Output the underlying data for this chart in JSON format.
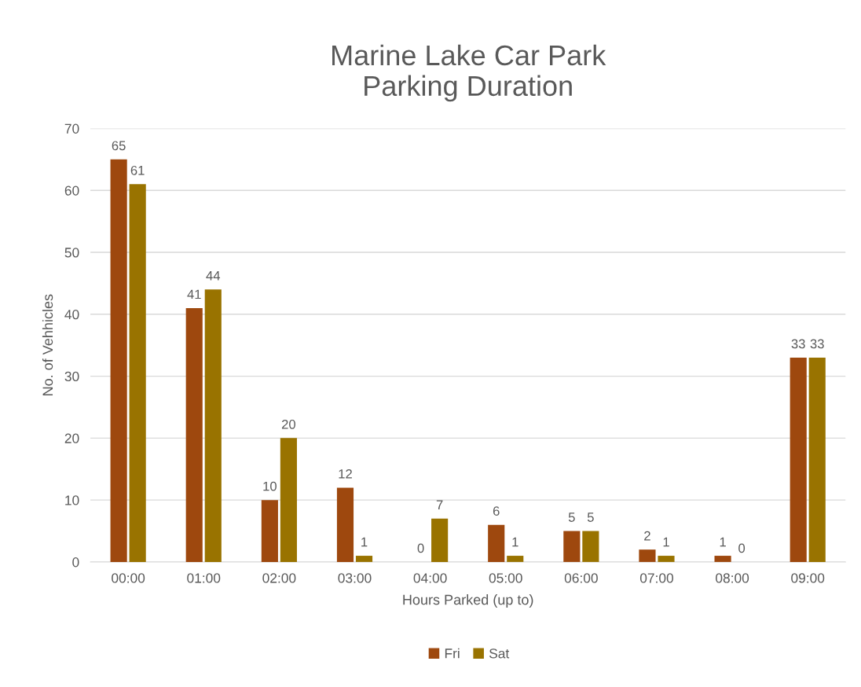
{
  "chart_data": {
    "type": "bar",
    "title": "Marine Lake Car Park\nParking Duration",
    "xlabel": "Hours Parked (up to)",
    "ylabel": "No. of Vehhicles",
    "categories": [
      "00:00",
      "01:00",
      "02:00",
      "03:00",
      "04:00",
      "05:00",
      "06:00",
      "07:00",
      "08:00",
      "09:00"
    ],
    "series": [
      {
        "name": "Fri",
        "color": "#9e480e",
        "values": [
          65,
          41,
          10,
          12,
          0,
          6,
          5,
          2,
          1,
          33
        ]
      },
      {
        "name": "Sat",
        "color": "#997300",
        "values": [
          61,
          44,
          20,
          1,
          7,
          1,
          5,
          1,
          0,
          33
        ]
      }
    ],
    "ylim": [
      0,
      70
    ],
    "yticks": [
      0,
      10,
      20,
      30,
      40,
      50,
      60,
      70
    ],
    "grid": "y",
    "legend": "bottom",
    "data_labels": true
  }
}
